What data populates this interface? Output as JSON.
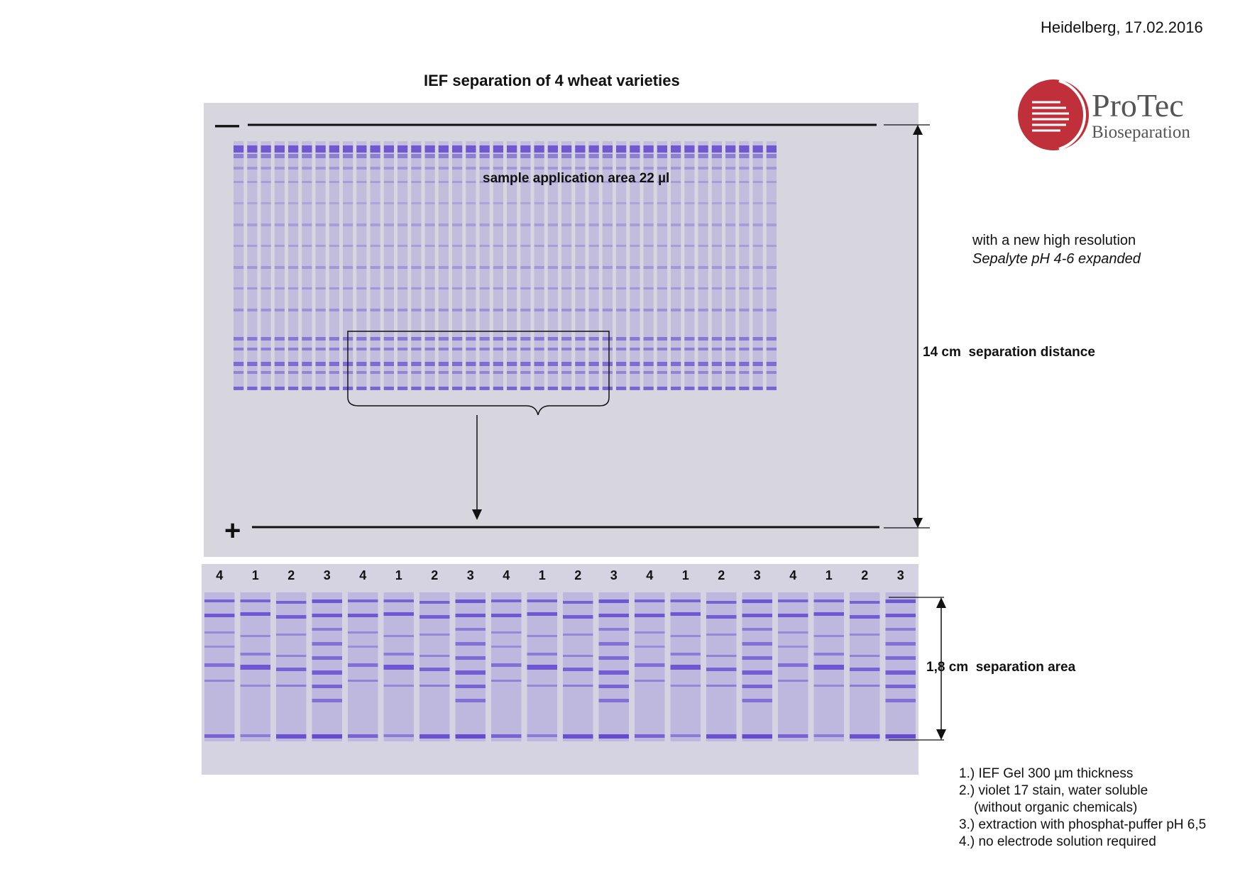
{
  "header": {
    "date": "Heidelberg, 17.02.2016",
    "title": "IEF separation of 4 wheat varieties"
  },
  "logo": {
    "line1": "ProTec",
    "line2": "Bioseparation",
    "mark_color": "#c0303a"
  },
  "gel_full": {
    "minus_symbol": "—",
    "plus_symbol": "+",
    "sample_label": "sample application area 22 µl",
    "stain_color": "#5a3fd0",
    "gel_background": "#d7d6df"
  },
  "description": {
    "line1": "with a new high resolution",
    "line2": "Sepalyte pH 4-6 expanded"
  },
  "distance": {
    "value": "14 cm",
    "label": "separation distance"
  },
  "gel_detail": {
    "lanes": [
      "4",
      "1",
      "2",
      "3",
      "4",
      "1",
      "2",
      "3",
      "4",
      "1",
      "2",
      "3",
      "4",
      "1",
      "2",
      "3",
      "4",
      "1",
      "2",
      "3"
    ]
  },
  "area": {
    "value": "1,8 cm",
    "label": "separation area"
  },
  "notes": [
    "1.) IEF Gel 300 µm thickness",
    "2.) violet 17 stain, water soluble",
    "    (without organic chemicals)",
    "3.) extraction with phosphat-puffer pH 6,5",
    "4.) no electrode solution required"
  ]
}
